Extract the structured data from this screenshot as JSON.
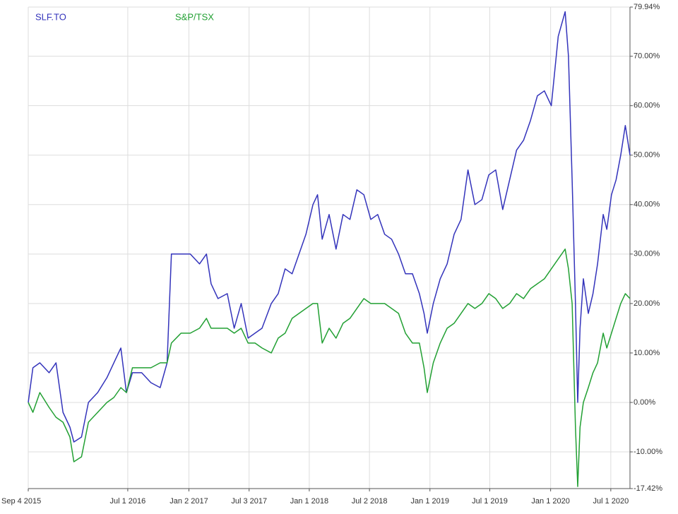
{
  "chart_data": {
    "type": "line",
    "x": [
      "2015-09-04",
      "2015-09-18",
      "2015-10-09",
      "2015-11-06",
      "2015-11-27",
      "2015-12-18",
      "2016-01-08",
      "2016-01-20",
      "2016-02-12",
      "2016-03-04",
      "2016-04-01",
      "2016-04-29",
      "2016-05-20",
      "2016-06-10",
      "2016-06-27",
      "2016-07-15",
      "2016-08-12",
      "2016-09-09",
      "2016-10-07",
      "2016-10-28",
      "2016-11-10",
      "2016-12-09",
      "2017-01-06",
      "2017-02-03",
      "2017-02-24",
      "2017-03-10",
      "2017-03-31",
      "2017-04-28",
      "2017-05-19",
      "2017-06-09",
      "2017-06-30",
      "2017-07-21",
      "2017-08-11",
      "2017-09-08",
      "2017-09-29",
      "2017-10-20",
      "2017-11-10",
      "2017-12-01",
      "2017-12-22",
      "2018-01-12",
      "2018-01-26",
      "2018-02-09",
      "2018-03-02",
      "2018-03-23",
      "2018-04-13",
      "2018-05-04",
      "2018-05-25",
      "2018-06-15",
      "2018-07-06",
      "2018-07-27",
      "2018-08-17",
      "2018-09-07",
      "2018-09-28",
      "2018-10-19",
      "2018-11-09",
      "2018-11-30",
      "2018-12-14",
      "2018-12-24",
      "2019-01-11",
      "2019-02-01",
      "2019-02-22",
      "2019-03-15",
      "2019-04-05",
      "2019-04-26",
      "2019-05-17",
      "2019-06-07",
      "2019-06-28",
      "2019-07-19",
      "2019-08-09",
      "2019-08-30",
      "2019-09-20",
      "2019-10-11",
      "2019-11-01",
      "2019-11-22",
      "2019-12-13",
      "2020-01-03",
      "2020-01-24",
      "2020-02-14",
      "2020-02-24",
      "2020-03-06",
      "2020-03-16",
      "2020-03-23",
      "2020-03-30",
      "2020-04-09",
      "2020-04-24",
      "2020-05-08",
      "2020-05-22",
      "2020-06-08",
      "2020-06-19",
      "2020-07-03",
      "2020-07-17",
      "2020-07-31",
      "2020-08-14",
      "2020-08-28"
    ],
    "series": [
      {
        "name": "SLF.TO",
        "color": "#3333bb",
        "values": [
          0,
          7,
          8,
          6,
          8,
          -2,
          -5,
          -8,
          -7,
          0,
          2,
          5,
          8,
          11,
          2,
          6,
          6,
          4,
          3,
          8,
          30,
          30,
          30,
          28,
          30,
          24,
          21,
          22,
          15,
          20,
          13,
          14,
          15,
          20,
          22,
          27,
          26,
          30,
          34,
          40,
          42,
          33,
          38,
          31,
          38,
          37,
          43,
          42,
          37,
          38,
          34,
          33,
          30,
          26,
          26,
          22,
          18,
          14,
          20,
          25,
          28,
          34,
          37,
          47,
          40,
          41,
          46,
          47,
          39,
          45,
          51,
          53,
          57,
          62,
          63,
          60,
          74,
          79,
          70,
          45,
          20,
          0,
          15,
          25,
          18,
          22,
          28,
          38,
          35,
          42,
          45,
          50,
          56,
          50
        ]
      },
      {
        "name": "S&P/TSX",
        "color": "#22a033",
        "values": [
          0,
          -2,
          2,
          -1,
          -3,
          -4,
          -7,
          -12,
          -11,
          -4,
          -2,
          0,
          1,
          3,
          2,
          7,
          7,
          7,
          8,
          8,
          12,
          14,
          14,
          15,
          17,
          15,
          15,
          15,
          14,
          15,
          12,
          12,
          11,
          10,
          13,
          14,
          17,
          18,
          19,
          20,
          20,
          12,
          15,
          13,
          16,
          17,
          19,
          21,
          20,
          20,
          20,
          19,
          18,
          14,
          12,
          12,
          7,
          2,
          8,
          12,
          15,
          16,
          18,
          20,
          19,
          20,
          22,
          21,
          19,
          20,
          22,
          21,
          23,
          24,
          25,
          27,
          29,
          31,
          27,
          20,
          -5,
          -17,
          -5,
          0,
          3,
          6,
          8,
          14,
          11,
          14,
          17,
          20,
          22,
          21
        ]
      }
    ],
    "xlim": [
      "2015-09-04",
      "2020-08-28"
    ],
    "xticks": [
      {
        "value": "2015-09-04",
        "label": "Sep 4 2015"
      },
      {
        "value": "2016-07-01",
        "label": "Jul 1 2016"
      },
      {
        "value": "2017-01-02",
        "label": "Jan 2 2017"
      },
      {
        "value": "2017-07-03",
        "label": "Jul 3 2017"
      },
      {
        "value": "2018-01-01",
        "label": "Jan 1 2018"
      },
      {
        "value": "2018-07-02",
        "label": "Jul 2 2018"
      },
      {
        "value": "2019-01-01",
        "label": "Jan 1 2019"
      },
      {
        "value": "2019-07-01",
        "label": "Jul 1 2019"
      },
      {
        "value": "2020-01-01",
        "label": "Jan 1 2020"
      },
      {
        "value": "2020-07-01",
        "label": "Jul 1 2020"
      }
    ],
    "ylim": [
      -17.42,
      79.94
    ],
    "yticks": [
      {
        "value": -17.42,
        "label": "-17.42%"
      },
      {
        "value": -10,
        "label": "-10.00%"
      },
      {
        "value": 0,
        "label": "0.00%"
      },
      {
        "value": 10,
        "label": "10.00%"
      },
      {
        "value": 20,
        "label": "20.00%"
      },
      {
        "value": 30,
        "label": "30.00%"
      },
      {
        "value": 40,
        "label": "40.00%"
      },
      {
        "value": 50,
        "label": "50.00%"
      },
      {
        "value": 60,
        "label": "60.00%"
      },
      {
        "value": 70,
        "label": "70.00%"
      },
      {
        "value": 79.94,
        "label": "79.94%"
      }
    ],
    "grid": true
  }
}
